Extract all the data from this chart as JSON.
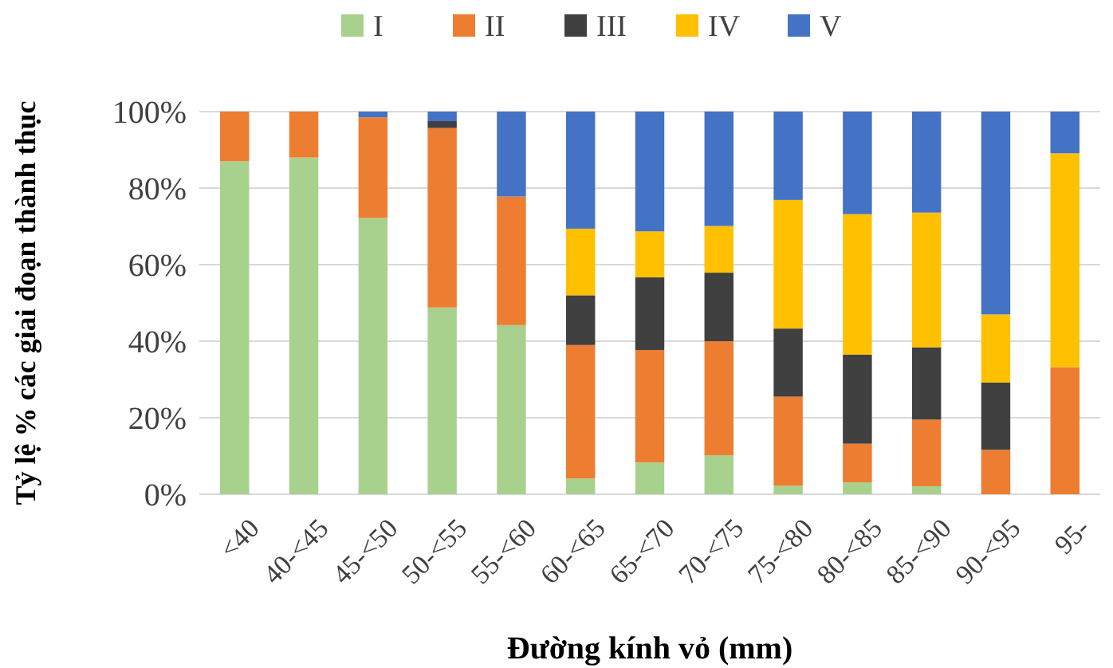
{
  "chart_data": {
    "type": "bar",
    "stacked": true,
    "xlabel": "Đường kính vỏ (mm)",
    "ylabel": "Tỷ lệ % các giai đoạn thành thục",
    "categories": [
      "<40",
      "40-<45",
      "45-<50",
      "50-<55",
      "55-<60",
      "60-<65",
      "65-<70",
      "70-<75",
      "75-<80",
      "80-<85",
      "85-<90",
      "90-<95",
      "95-"
    ],
    "series": [
      {
        "name": "I",
        "color": "#a9d18e",
        "values": [
          87,
          88,
          72.2,
          48.8,
          44.2,
          4.1,
          8.3,
          10.2,
          2.2,
          3.1,
          2.1,
          0,
          0
        ]
      },
      {
        "name": "II",
        "color": "#ed7d31",
        "values": [
          13,
          12,
          26.3,
          46.9,
          33.6,
          34.9,
          29.4,
          29.8,
          23.3,
          10.1,
          17.4,
          11.6,
          33.2
        ]
      },
      {
        "name": "III",
        "color": "#404040",
        "values": [
          0,
          0,
          0,
          1.8,
          0,
          13,
          19,
          17.9,
          17.8,
          23.3,
          18.9,
          17.6,
          0
        ]
      },
      {
        "name": "IV",
        "color": "#ffc000",
        "values": [
          0,
          0,
          0,
          0,
          0,
          17.4,
          12,
          12.2,
          33.6,
          36.7,
          35.2,
          17.8,
          55.9
        ]
      },
      {
        "name": "V",
        "color": "#4472c4",
        "values": [
          0,
          0,
          1.5,
          2.5,
          22.2,
          30.6,
          31.3,
          29.9,
          23.1,
          26.8,
          26.4,
          53,
          10.9
        ]
      }
    ],
    "ylim": [
      0,
      100
    ],
    "yticks": [
      {
        "value": 0,
        "label": "0%"
      },
      {
        "value": 20,
        "label": "20%"
      },
      {
        "value": 40,
        "label": "40%"
      },
      {
        "value": 60,
        "label": "60%"
      },
      {
        "value": 80,
        "label": "80%"
      },
      {
        "value": 100,
        "label": "100%"
      }
    ],
    "grid": "y",
    "legend": "top"
  }
}
